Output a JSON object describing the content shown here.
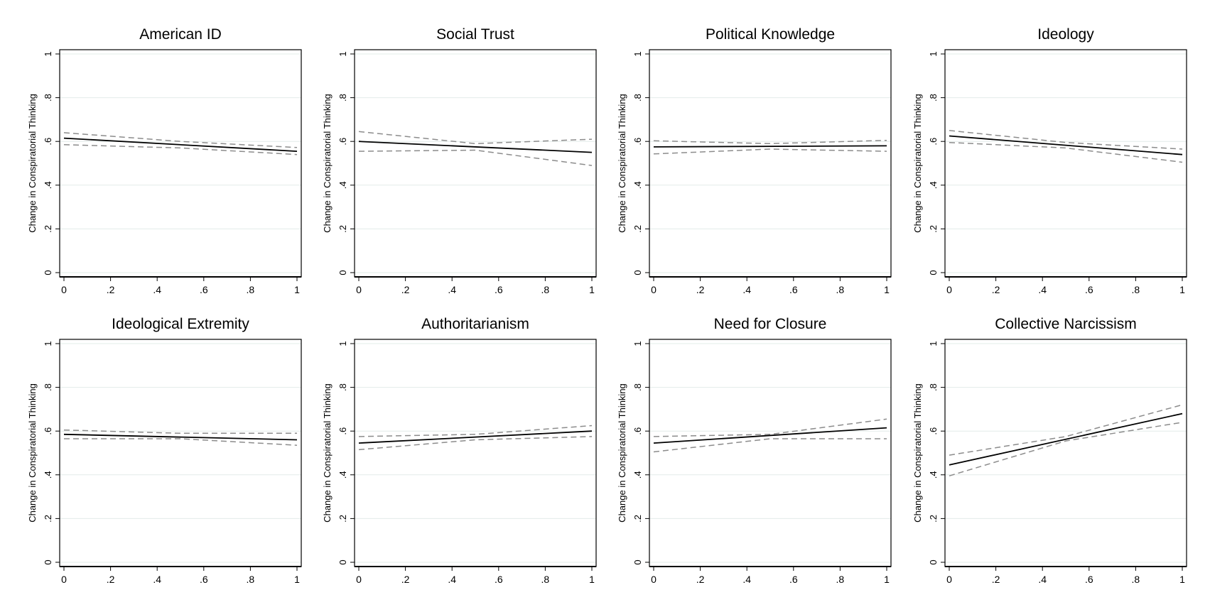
{
  "chart_data": [
    {
      "type": "line",
      "title": "American ID",
      "xlabel": "",
      "ylabel": "Change in Conspiratorial Thinking",
      "xlim": [
        0,
        1
      ],
      "ylim": [
        0,
        1
      ],
      "xticks": [
        "0",
        ".2",
        ".4",
        ".6",
        ".8",
        "1"
      ],
      "yticks": [
        "0",
        ".2",
        ".4",
        ".6",
        ".8",
        "1"
      ],
      "grid": "horizontal",
      "series": [
        {
          "role": "estimate",
          "style": "solid",
          "x": [
            0,
            1
          ],
          "y": [
            0.615,
            0.555
          ]
        },
        {
          "role": "upper bound",
          "style": "dashed",
          "x": [
            0,
            0.5,
            1
          ],
          "y": [
            0.64,
            0.6,
            0.572
          ]
        },
        {
          "role": "lower bound",
          "style": "dashed",
          "x": [
            0,
            0.5,
            1
          ],
          "y": [
            0.585,
            0.57,
            0.54
          ]
        }
      ]
    },
    {
      "type": "line",
      "title": "Social Trust",
      "xlabel": "",
      "ylabel": "Change in Conspiratorial Thinking",
      "xlim": [
        0,
        1
      ],
      "ylim": [
        0,
        1
      ],
      "xticks": [
        "0",
        ".2",
        ".4",
        ".6",
        ".8",
        "1"
      ],
      "yticks": [
        "0",
        ".2",
        ".4",
        ".6",
        ".8",
        "1"
      ],
      "grid": "horizontal",
      "series": [
        {
          "role": "estimate",
          "style": "solid",
          "x": [
            0,
            1
          ],
          "y": [
            0.6,
            0.55
          ]
        },
        {
          "role": "upper bound",
          "style": "dashed",
          "x": [
            0,
            0.5,
            1
          ],
          "y": [
            0.645,
            0.59,
            0.61
          ]
        },
        {
          "role": "lower bound",
          "style": "dashed",
          "x": [
            0,
            0.5,
            1
          ],
          "y": [
            0.555,
            0.56,
            0.49
          ]
        }
      ]
    },
    {
      "type": "line",
      "title": "Political Knowledge",
      "xlabel": "",
      "ylabel": "Change in Conspiratorial Thinking",
      "xlim": [
        0,
        1
      ],
      "ylim": [
        0,
        1
      ],
      "xticks": [
        "0",
        ".2",
        ".4",
        ".6",
        ".8",
        "1"
      ],
      "yticks": [
        "0",
        ".2",
        ".4",
        ".6",
        ".8",
        "1"
      ],
      "grid": "horizontal",
      "series": [
        {
          "role": "estimate",
          "style": "solid",
          "x": [
            0,
            1
          ],
          "y": [
            0.575,
            0.58
          ]
        },
        {
          "role": "upper bound",
          "style": "dashed",
          "x": [
            0,
            0.5,
            1
          ],
          "y": [
            0.603,
            0.59,
            0.605
          ]
        },
        {
          "role": "lower bound",
          "style": "dashed",
          "x": [
            0,
            0.5,
            1
          ],
          "y": [
            0.543,
            0.565,
            0.555
          ]
        }
      ]
    },
    {
      "type": "line",
      "title": "Ideology",
      "xlabel": "",
      "ylabel": "Change in Conspiratorial Thinking",
      "xlim": [
        0,
        1
      ],
      "ylim": [
        0,
        1
      ],
      "xticks": [
        "0",
        ".2",
        ".4",
        ".6",
        ".8",
        "1"
      ],
      "yticks": [
        "0",
        ".2",
        ".4",
        ".6",
        ".8",
        "1"
      ],
      "grid": "horizontal",
      "series": [
        {
          "role": "estimate",
          "style": "solid",
          "x": [
            0,
            1
          ],
          "y": [
            0.625,
            0.54
          ]
        },
        {
          "role": "upper bound",
          "style": "dashed",
          "x": [
            0,
            0.5,
            1
          ],
          "y": [
            0.65,
            0.595,
            0.565
          ]
        },
        {
          "role": "lower bound",
          "style": "dashed",
          "x": [
            0,
            0.5,
            1
          ],
          "y": [
            0.595,
            0.57,
            0.505
          ]
        }
      ]
    },
    {
      "type": "line",
      "title": "Ideological Extremity",
      "xlabel": "",
      "ylabel": "Change in Conspiratorial Thinking",
      "xlim": [
        0,
        1
      ],
      "ylim": [
        0,
        1
      ],
      "xticks": [
        "0",
        ".2",
        ".4",
        ".6",
        ".8",
        "1"
      ],
      "yticks": [
        "0",
        ".2",
        ".4",
        ".6",
        ".8",
        "1"
      ],
      "grid": "horizontal",
      "series": [
        {
          "role": "estimate",
          "style": "solid",
          "x": [
            0,
            1
          ],
          "y": [
            0.585,
            0.56
          ]
        },
        {
          "role": "upper bound",
          "style": "dashed",
          "x": [
            0,
            0.5,
            1
          ],
          "y": [
            0.605,
            0.59,
            0.59
          ]
        },
        {
          "role": "lower bound",
          "style": "dashed",
          "x": [
            0,
            0.5,
            1
          ],
          "y": [
            0.565,
            0.565,
            0.535
          ]
        }
      ]
    },
    {
      "type": "line",
      "title": "Authoritarianism",
      "xlabel": "",
      "ylabel": "Change in Conspiratorial Thinking",
      "xlim": [
        0,
        1
      ],
      "ylim": [
        0,
        1
      ],
      "xticks": [
        "0",
        ".2",
        ".4",
        ".6",
        ".8",
        "1"
      ],
      "yticks": [
        "0",
        ".2",
        ".4",
        ".6",
        ".8",
        "1"
      ],
      "grid": "horizontal",
      "series": [
        {
          "role": "estimate",
          "style": "solid",
          "x": [
            0,
            1
          ],
          "y": [
            0.545,
            0.6
          ]
        },
        {
          "role": "upper bound",
          "style": "dashed",
          "x": [
            0,
            0.5,
            1
          ],
          "y": [
            0.575,
            0.585,
            0.625
          ]
        },
        {
          "role": "lower bound",
          "style": "dashed",
          "x": [
            0,
            0.5,
            1
          ],
          "y": [
            0.515,
            0.56,
            0.575
          ]
        }
      ]
    },
    {
      "type": "line",
      "title": "Need for Closure",
      "xlabel": "",
      "ylabel": "Change in Conspiratorial Thinking",
      "xlim": [
        0,
        1
      ],
      "ylim": [
        0,
        1
      ],
      "xticks": [
        "0",
        ".2",
        ".4",
        ".6",
        ".8",
        "1"
      ],
      "yticks": [
        "0",
        ".2",
        ".4",
        ".6",
        ".8",
        "1"
      ],
      "grid": "horizontal",
      "series": [
        {
          "role": "estimate",
          "style": "solid",
          "x": [
            0,
            1
          ],
          "y": [
            0.545,
            0.615
          ]
        },
        {
          "role": "upper bound",
          "style": "dashed",
          "x": [
            0,
            0.5,
            1
          ],
          "y": [
            0.575,
            0.585,
            0.655
          ]
        },
        {
          "role": "lower bound",
          "style": "dashed",
          "x": [
            0,
            0.5,
            1
          ],
          "y": [
            0.505,
            0.565,
            0.565
          ]
        }
      ]
    },
    {
      "type": "line",
      "title": "Collective Narcissism",
      "xlabel": "",
      "ylabel": "Change in Conspiratorial Thinking",
      "xlim": [
        0,
        1
      ],
      "ylim": [
        0,
        1
      ],
      "xticks": [
        "0",
        ".2",
        ".4",
        ".6",
        ".8",
        "1"
      ],
      "yticks": [
        "0",
        ".2",
        ".4",
        ".6",
        ".8",
        "1"
      ],
      "grid": "horizontal",
      "series": [
        {
          "role": "estimate",
          "style": "solid",
          "x": [
            0,
            1
          ],
          "y": [
            0.445,
            0.68
          ]
        },
        {
          "role": "upper bound",
          "style": "dashed",
          "x": [
            0,
            0.5,
            1
          ],
          "y": [
            0.49,
            0.575,
            0.72
          ]
        },
        {
          "role": "lower bound",
          "style": "dashed",
          "x": [
            0,
            0.5,
            1
          ],
          "y": [
            0.395,
            0.555,
            0.64
          ]
        }
      ]
    }
  ],
  "colors": {
    "estimate": "#000000",
    "bounds": "#8c8c8c",
    "grid": "#e3ece9",
    "frame": "#000000",
    "background": "#ffffff"
  }
}
